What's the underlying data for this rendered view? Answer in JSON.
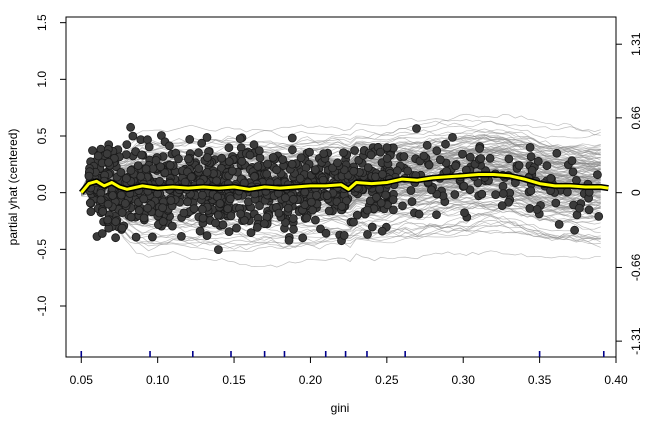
{
  "chart_data": {
    "type": "scatter",
    "title": "",
    "xlabel": "gini",
    "ylabel": "partial yhat (centered)",
    "xlim": [
      0.04,
      0.4
    ],
    "ylim": [
      -1.45,
      1.55
    ],
    "x_ticks": [
      "0.05",
      "0.10",
      "0.15",
      "0.20",
      "0.25",
      "0.30",
      "0.35",
      "0.40"
    ],
    "x_tick_values": [
      0.05,
      0.1,
      0.15,
      0.2,
      0.25,
      0.3,
      0.35,
      0.4
    ],
    "y_ticks": [
      "-1.0",
      "-0.5",
      "0.0",
      "0.5",
      "1.0",
      "1.5"
    ],
    "y_tick_values": [
      -1.0,
      -0.5,
      0.0,
      0.5,
      1.0,
      1.5
    ],
    "y2_ticks": [
      "-1.31",
      "-0.66",
      "0",
      "0.66",
      "1.31"
    ],
    "y2_tick_values": [
      -1.31,
      -0.66,
      0,
      0.66,
      1.31
    ],
    "rug_x": [
      0.05,
      0.095,
      0.123,
      0.148,
      0.17,
      0.183,
      0.21,
      0.223,
      0.237,
      0.262,
      0.35,
      0.392
    ],
    "colors": {
      "ice_lines": "#8a8a8a",
      "points_fill": "#3b3b3b",
      "points_stroke": "#1a1a1a",
      "pdp_outer": "#000000",
      "pdp_inner": "#ffff00",
      "rug": "#00008b"
    },
    "series": [
      {
        "name": "",
        "x": [
          0.05,
          0.055,
          0.06,
          0.065,
          0.07,
          0.075,
          0.08,
          0.09,
          0.1,
          0.11,
          0.12,
          0.13,
          0.14,
          0.15,
          0.16,
          0.17,
          0.18,
          0.19,
          0.2,
          0.21,
          0.22,
          0.225,
          0.23,
          0.24,
          0.25,
          0.26,
          0.27,
          0.28,
          0.29,
          0.3,
          0.31,
          0.32,
          0.33,
          0.34,
          0.35,
          0.36,
          0.37,
          0.38,
          0.39,
          0.395
        ],
        "y": [
          0.0,
          0.08,
          0.1,
          0.06,
          0.09,
          0.05,
          0.03,
          0.06,
          0.04,
          0.05,
          0.04,
          0.05,
          0.04,
          0.05,
          0.03,
          0.05,
          0.04,
          0.05,
          0.06,
          0.06,
          0.07,
          0.03,
          0.09,
          0.08,
          0.09,
          0.12,
          0.11,
          0.13,
          0.14,
          0.15,
          0.16,
          0.16,
          0.15,
          0.12,
          0.08,
          0.06,
          0.06,
          0.05,
          0.05,
          0.04
        ]
      }
    ]
  }
}
